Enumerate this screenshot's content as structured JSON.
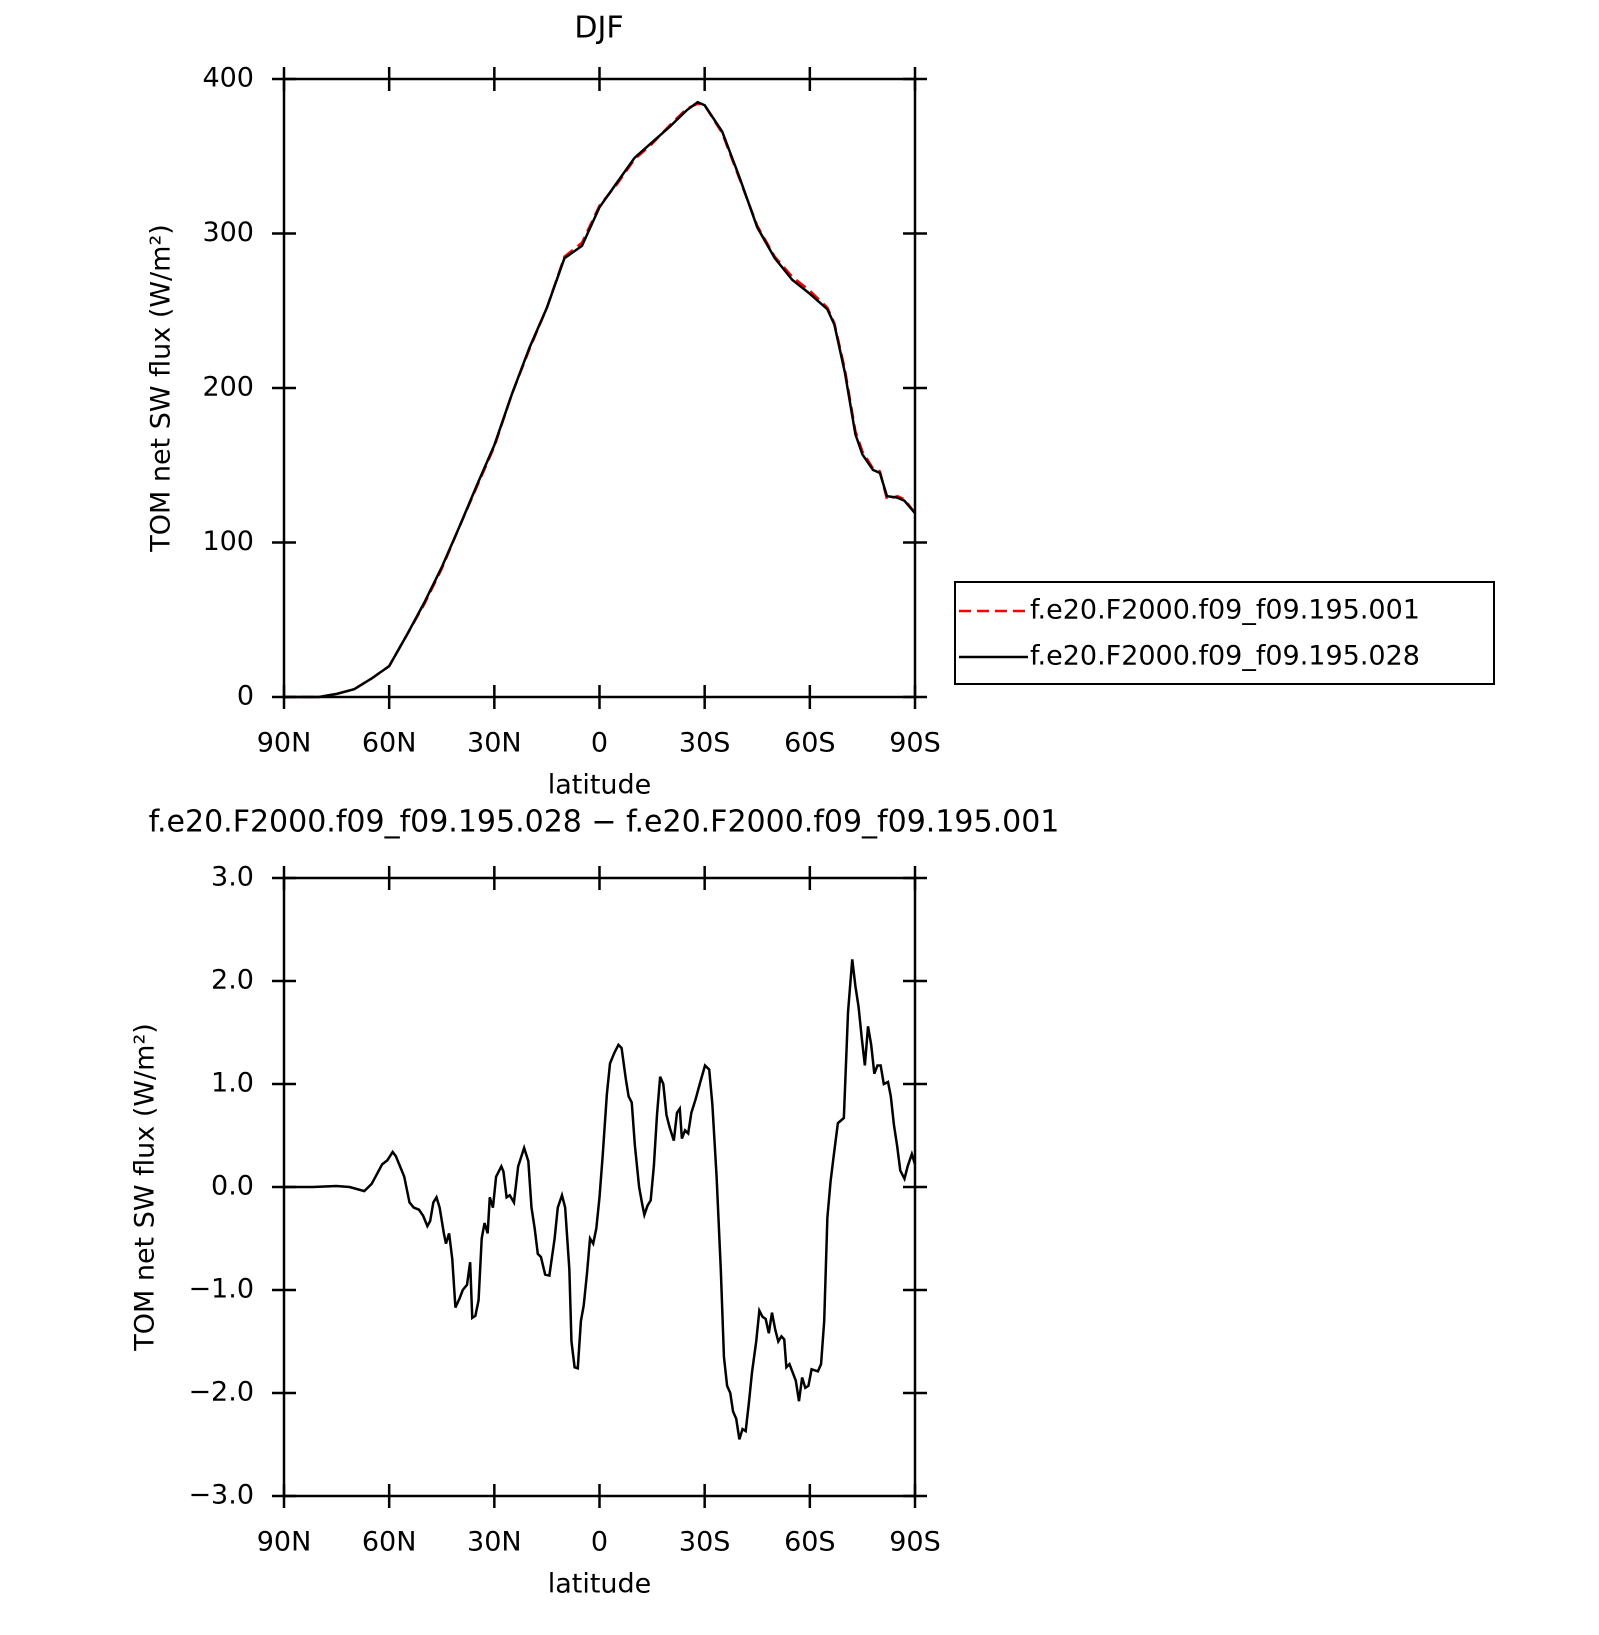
{
  "chart_data": [
    {
      "type": "line",
      "title": "DJF",
      "x_label": "latitude",
      "y_label": "TOM net SW flux (W/m²)",
      "xlim": [
        90,
        -90
      ],
      "ylim": [
        0,
        400
      ],
      "xticks": [
        {
          "value": 90,
          "label": "90N"
        },
        {
          "value": 60,
          "label": "60N"
        },
        {
          "value": 30,
          "label": "30N"
        },
        0,
        {
          "value": -30,
          "label": "30S"
        },
        {
          "value": -60,
          "label": "60S"
        },
        {
          "value": -90,
          "label": "90S"
        }
      ],
      "yticks": [
        0,
        100,
        200,
        300,
        400
      ],
      "legend": "right",
      "x": [
        90,
        80,
        75,
        70,
        65,
        60,
        55,
        50,
        45,
        40,
        35,
        30,
        25,
        20,
        15,
        10,
        5,
        0,
        -5,
        -10,
        -15,
        -20,
        -25,
        -28,
        -30,
        -35,
        -40,
        -45,
        -50,
        -55,
        -60,
        -65,
        -67,
        -70,
        -73,
        -75,
        -78,
        -80,
        -82,
        -85,
        -87,
        -90
      ],
      "series": [
        {
          "name": "f.e20.F2000.f09_f09.195.001",
          "color": "#ff0000",
          "style": "dashed",
          "values": [
            0,
            0,
            2,
            5,
            12,
            20,
            40,
            60,
            83,
            110,
            136,
            162,
            196,
            225,
            252,
            285,
            294,
            318,
            332,
            348,
            358,
            370,
            381,
            384,
            383,
            365,
            335,
            305,
            285,
            272,
            263,
            252,
            242,
            212,
            172,
            159,
            148,
            146,
            128,
            130,
            128,
            119
          ]
        },
        {
          "name": "f.e20.F2000.f09_f09.195.028",
          "color": "#000000",
          "style": "solid",
          "values": [
            0,
            0,
            2,
            5,
            12,
            20,
            40,
            61,
            84,
            110,
            137,
            163,
            196,
            226,
            252,
            284,
            292,
            317,
            333,
            349,
            359,
            369,
            380,
            385,
            383,
            366,
            336,
            304,
            284,
            270,
            261,
            251,
            241,
            210,
            170,
            157,
            147,
            145,
            130,
            129,
            127,
            119
          ]
        }
      ]
    },
    {
      "type": "line",
      "title": "f.e20.F2000.f09_f09.195.028 − f.e20.F2000.f09_f09.195.001",
      "x_label": "latitude",
      "y_label": "TOM net SW flux (W/m²)",
      "xlim": [
        90,
        -90
      ],
      "ylim": [
        -3,
        3
      ],
      "xticks": [
        {
          "value": 90,
          "label": "90N"
        },
        {
          "value": 60,
          "label": "60N"
        },
        {
          "value": 30,
          "label": "30N"
        },
        0,
        {
          "value": -30,
          "label": "30S"
        },
        {
          "value": -60,
          "label": "60S"
        },
        {
          "value": -90,
          "label": "90S"
        }
      ],
      "yticks": [
        {
          "value": -3,
          "label": "−3.0"
        },
        {
          "value": -2,
          "label": "−2.0"
        },
        {
          "value": -1,
          "label": "−1.0"
        },
        {
          "value": 0,
          "label": "0.0"
        },
        {
          "value": 1,
          "label": "1.0"
        },
        {
          "value": 2,
          "label": "2.0"
        },
        {
          "value": 3,
          "label": "3.0"
        }
      ],
      "color": "#000000",
      "x": [
        90,
        81.7,
        75.1,
        71.3,
        67.1,
        65.0,
        62.0,
        60.5,
        59.0,
        58.1,
        56.9,
        55.7,
        54.2,
        53.0,
        51.5,
        50.3,
        49.1,
        48.3,
        47.4,
        46.5,
        45.6,
        44.4,
        43.8,
        42.9,
        42.0,
        41.1,
        39.9,
        39.0,
        37.8,
        36.9,
        36.3,
        35.4,
        34.5,
        33.6,
        32.8,
        31.9,
        31.3,
        30.4,
        29.5,
        28.0,
        27.4,
        26.5,
        25.6,
        24.4,
        23.2,
        21.5,
        20.3,
        19.4,
        18.5,
        17.6,
        16.7,
        15.5,
        14.3,
        12.8,
        11.9,
        10.7,
        9.8,
        8.6,
        8.0,
        7.1,
        6.2,
        5.3,
        4.5,
        3.6,
        2.7,
        1.8,
        0.9,
        0.0,
        -0.9,
        -2.1,
        -3.0,
        -4.2,
        -5.4,
        -6.3,
        -7.5,
        -8.3,
        -9.2,
        -10.1,
        -11.3,
        -12.2,
        -12.8,
        -13.7,
        -14.6,
        -15.5,
        -16.4,
        -17.3,
        -18.2,
        -19.1,
        -20.0,
        -21.2,
        -22.1,
        -22.9,
        -23.5,
        -24.4,
        -25.3,
        -26.2,
        -27.4,
        -28.6,
        -30.1,
        -31.3,
        -32.2,
        -33.4,
        -34.6,
        -35.5,
        -36.4,
        -37.3,
        -38.1,
        -39.0,
        -39.9,
        -40.8,
        -41.7,
        -42.6,
        -43.5,
        -44.7,
        -45.6,
        -46.5,
        -47.4,
        -48.3,
        -49.2,
        -50.1,
        -51.0,
        -51.9,
        -52.7,
        -53.3,
        -54.2,
        -55.1,
        -56.0,
        -56.9,
        -57.8,
        -58.7,
        -59.6,
        -60.5,
        -61.4,
        -62.3,
        -63.2,
        -64.1,
        -65.0,
        -65.9,
        -66.8,
        -68.0,
        -69.7,
        -70.9,
        -72.1,
        -73.0,
        -73.9,
        -74.8,
        -75.7,
        -76.6,
        -77.5,
        -78.4,
        -79.3,
        -80.2,
        -81.1,
        -82.3,
        -83.1,
        -84.0,
        -84.9,
        -85.8,
        -87.0,
        -87.9,
        -89.1,
        -90.0
      ],
      "values": [
        0,
        0,
        0.01,
        0,
        -0.04,
        0.03,
        0.22,
        0.26,
        0.34,
        0.3,
        0.2,
        0.1,
        -0.15,
        -0.2,
        -0.22,
        -0.28,
        -0.38,
        -0.33,
        -0.15,
        -0.1,
        -0.2,
        -0.45,
        -0.55,
        -0.45,
        -0.7,
        -1.17,
        -1.08,
        -1.0,
        -0.95,
        -0.73,
        -1.27,
        -1.25,
        -1.1,
        -0.5,
        -0.35,
        -0.45,
        -0.1,
        -0.2,
        0.1,
        0.2,
        0.15,
        -0.1,
        -0.08,
        -0.15,
        0.2,
        0.38,
        0.25,
        -0.2,
        -0.4,
        -0.65,
        -0.68,
        -0.85,
        -0.86,
        -0.5,
        -0.2,
        -0.08,
        -0.2,
        -0.8,
        -1.5,
        -1.75,
        -1.76,
        -1.3,
        -1.15,
        -0.85,
        -0.5,
        -0.55,
        -0.4,
        -0.1,
        0.3,
        0.9,
        1.2,
        1.3,
        1.38,
        1.35,
        1.05,
        0.88,
        0.82,
        0.4,
        0,
        -0.17,
        -0.27,
        -0.18,
        -0.13,
        0.2,
        0.7,
        1.07,
        1.0,
        0.7,
        0.58,
        0.45,
        0.72,
        0.76,
        0.47,
        0.55,
        0.52,
        0.72,
        0.85,
        1.0,
        1.18,
        1.14,
        0.8,
        0.1,
        -0.8,
        -1.65,
        -1.93,
        -2.0,
        -2.18,
        -2.25,
        -2.45,
        -2.35,
        -2.37,
        -2.1,
        -1.8,
        -1.5,
        -1.2,
        -1.26,
        -1.28,
        -1.42,
        -1.22,
        -1.38,
        -1.5,
        -1.45,
        -1.48,
        -1.75,
        -1.72,
        -1.8,
        -1.88,
        -2.08,
        -1.85,
        -1.95,
        -1.93,
        -1.77,
        -1.78,
        -1.79,
        -1.72,
        -1.3,
        -0.3,
        0.05,
        0.3,
        0.62,
        0.67,
        1.7,
        2.21,
        1.95,
        1.75,
        1.45,
        1.18,
        1.56,
        1.38,
        1.1,
        1.18,
        1.18,
        1.0,
        1.02,
        0.88,
        0.6,
        0.4,
        0.16,
        0.08,
        0.2,
        0.32,
        0.22
      ]
    }
  ]
}
